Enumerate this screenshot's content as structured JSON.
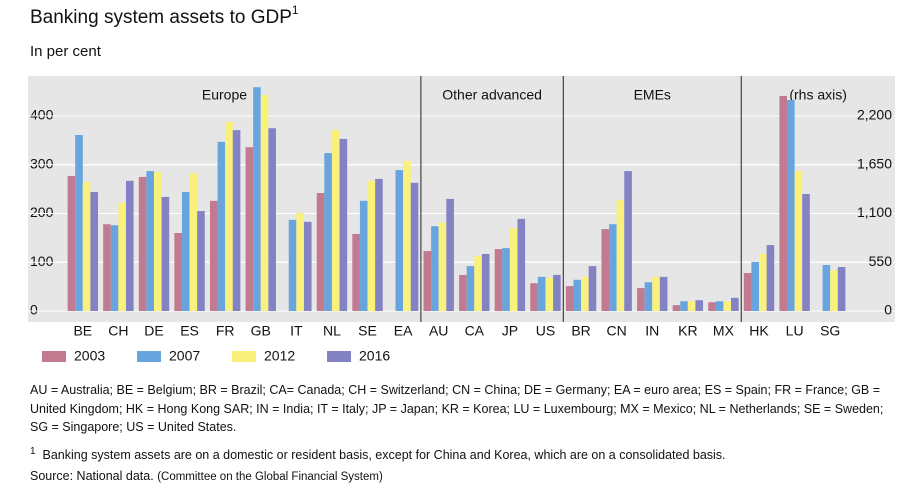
{
  "chart_data": {
    "type": "bar",
    "title": "Banking system assets to GDP",
    "footnote_marker": "1",
    "subtitle": "In per cent",
    "groups": [
      {
        "label": "Europe",
        "categories": [
          "BE",
          "CH",
          "DE",
          "ES",
          "FR",
          "GB",
          "IT",
          "NL",
          "SE",
          "EA"
        ]
      },
      {
        "label": "Other advanced",
        "categories": [
          "AU",
          "CA",
          "JP",
          "US"
        ]
      },
      {
        "label": "EMEs",
        "categories": [
          "BR",
          "CN",
          "IN",
          "KR",
          "MX"
        ]
      },
      {
        "label": "(rhs axis)",
        "categories": [
          "HK",
          "LU",
          "SG"
        ]
      }
    ],
    "series": [
      {
        "name": "2003",
        "color": "#c27a90",
        "values": [
          277,
          178,
          275,
          160,
          226,
          336,
          null,
          242,
          158,
          null,
          123,
          74,
          127,
          57,
          51,
          168,
          47,
          12,
          18,
          null,
          null,
          null
        ]
      },
      {
        "name": "2007",
        "color": "#68a5de",
        "values": [
          361,
          176,
          287,
          244,
          347,
          459,
          187,
          324,
          226,
          289,
          174,
          92,
          129,
          70,
          64,
          178,
          59,
          20,
          20,
          null,
          null,
          null
        ]
      },
      {
        "name": "2012",
        "color": "#faf07c",
        "values": [
          265,
          222,
          285,
          283,
          388,
          443,
          201,
          371,
          267,
          308,
          181,
          113,
          170,
          68,
          70,
          228,
          70,
          20,
          20,
          null,
          null,
          null
        ]
      },
      {
        "name": "2016",
        "color": "#8383c4",
        "values": [
          244,
          267,
          234,
          205,
          371,
          375,
          183,
          353,
          271,
          263,
          230,
          117,
          189,
          74,
          92,
          287,
          70,
          22,
          27,
          null,
          null,
          null
        ]
      },
      {
        "name": "2003",
        "color": "#c27a90",
        "axis": "y2",
        "values": [
          null,
          null,
          null,
          null,
          null,
          null,
          null,
          null,
          null,
          null,
          null,
          null,
          null,
          null,
          null,
          null,
          null,
          null,
          null,
          429,
          2426,
          null
        ]
      },
      {
        "name": "2007",
        "color": "#68a5de",
        "axis": "y2",
        "values": [
          null,
          null,
          null,
          null,
          null,
          null,
          null,
          null,
          null,
          null,
          null,
          null,
          null,
          null,
          null,
          null,
          null,
          null,
          null,
          553,
          2381,
          519
        ]
      },
      {
        "name": "2012",
        "color": "#faf07c",
        "axis": "y2",
        "values": [
          null,
          null,
          null,
          null,
          null,
          null,
          null,
          null,
          null,
          null,
          null,
          null,
          null,
          null,
          null,
          null,
          null,
          null,
          null,
          643,
          1580,
          462
        ]
      },
      {
        "name": "2016",
        "color": "#8383c4",
        "axis": "y2",
        "values": [
          null,
          null,
          null,
          null,
          null,
          null,
          null,
          null,
          null,
          null,
          null,
          null,
          null,
          null,
          null,
          null,
          null,
          null,
          null,
          744,
          1320,
          496
        ]
      }
    ],
    "ylim": [
      0,
      480
    ],
    "yticks": [
      0,
      100,
      200,
      300,
      400
    ],
    "y2lim": [
      0,
      2640
    ],
    "y2ticks": [
      0,
      550,
      {
        "value": 1100,
        "label": "1,100"
      },
      {
        "value": 1650,
        "label": "1,650"
      },
      {
        "value": 2200,
        "label": "2,200"
      }
    ],
    "grid": true,
    "legend": "bottom",
    "abbreviations": "AU = Australia; BE = Belgium; BR = Brazil; CA= Canada; CH = Switzerland; CN = China; DE = Germany; EA = euro area; ES = Spain; FR = France; GB = United Kingdom; HK = Hong Kong SAR; IN = India; IT = Italy; JP = Japan; KR = Korea; LU = Luxembourg; MX = Mexico; NL = Netherlands; SE = Sweden; SG = Singapore; US = United States.",
    "footnote": "Banking system assets are on a domestic or resident basis, except for China and Korea, which are on a consolidated basis.",
    "source": "Source: National data.",
    "credit": "(Committee on the Global Financial System)"
  }
}
